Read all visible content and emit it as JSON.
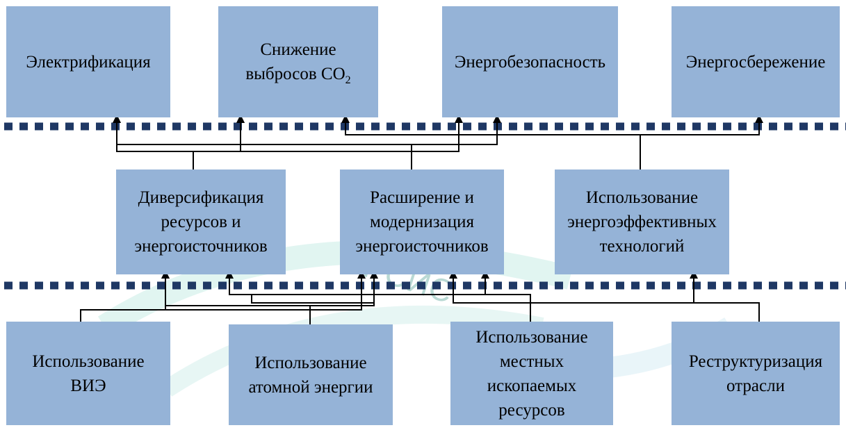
{
  "colors": {
    "box_fill": "#95b3d7",
    "dotted_line": "#1f3864",
    "connector": "#000000",
    "watermark": "#2aa198"
  },
  "watermark": {
    "text": "IT  CИC"
  },
  "top": {
    "electrification": "Электрификация",
    "co2_reduction": "Снижение\nвыбросов CO",
    "co2_subscript": "2",
    "energy_security": "Энергобезопасность",
    "energy_saving": "Энергосбережение"
  },
  "middle": {
    "diversification": "Диверсификация\nресурсов и\nэнергоисточников",
    "expansion": "Расширение и\nмодернизация\nэнергоисточников",
    "efficient_tech": "Использование\nэнергоэффективных\nтехнологий"
  },
  "bottom": {
    "renewables": "Использование\nВИЭ",
    "nuclear": "Использование\nатомной энергии",
    "local_fossil": "Использование\nместных\nископаемых\nресурсов",
    "restructuring": "Реструктуризация\nотрасли"
  }
}
